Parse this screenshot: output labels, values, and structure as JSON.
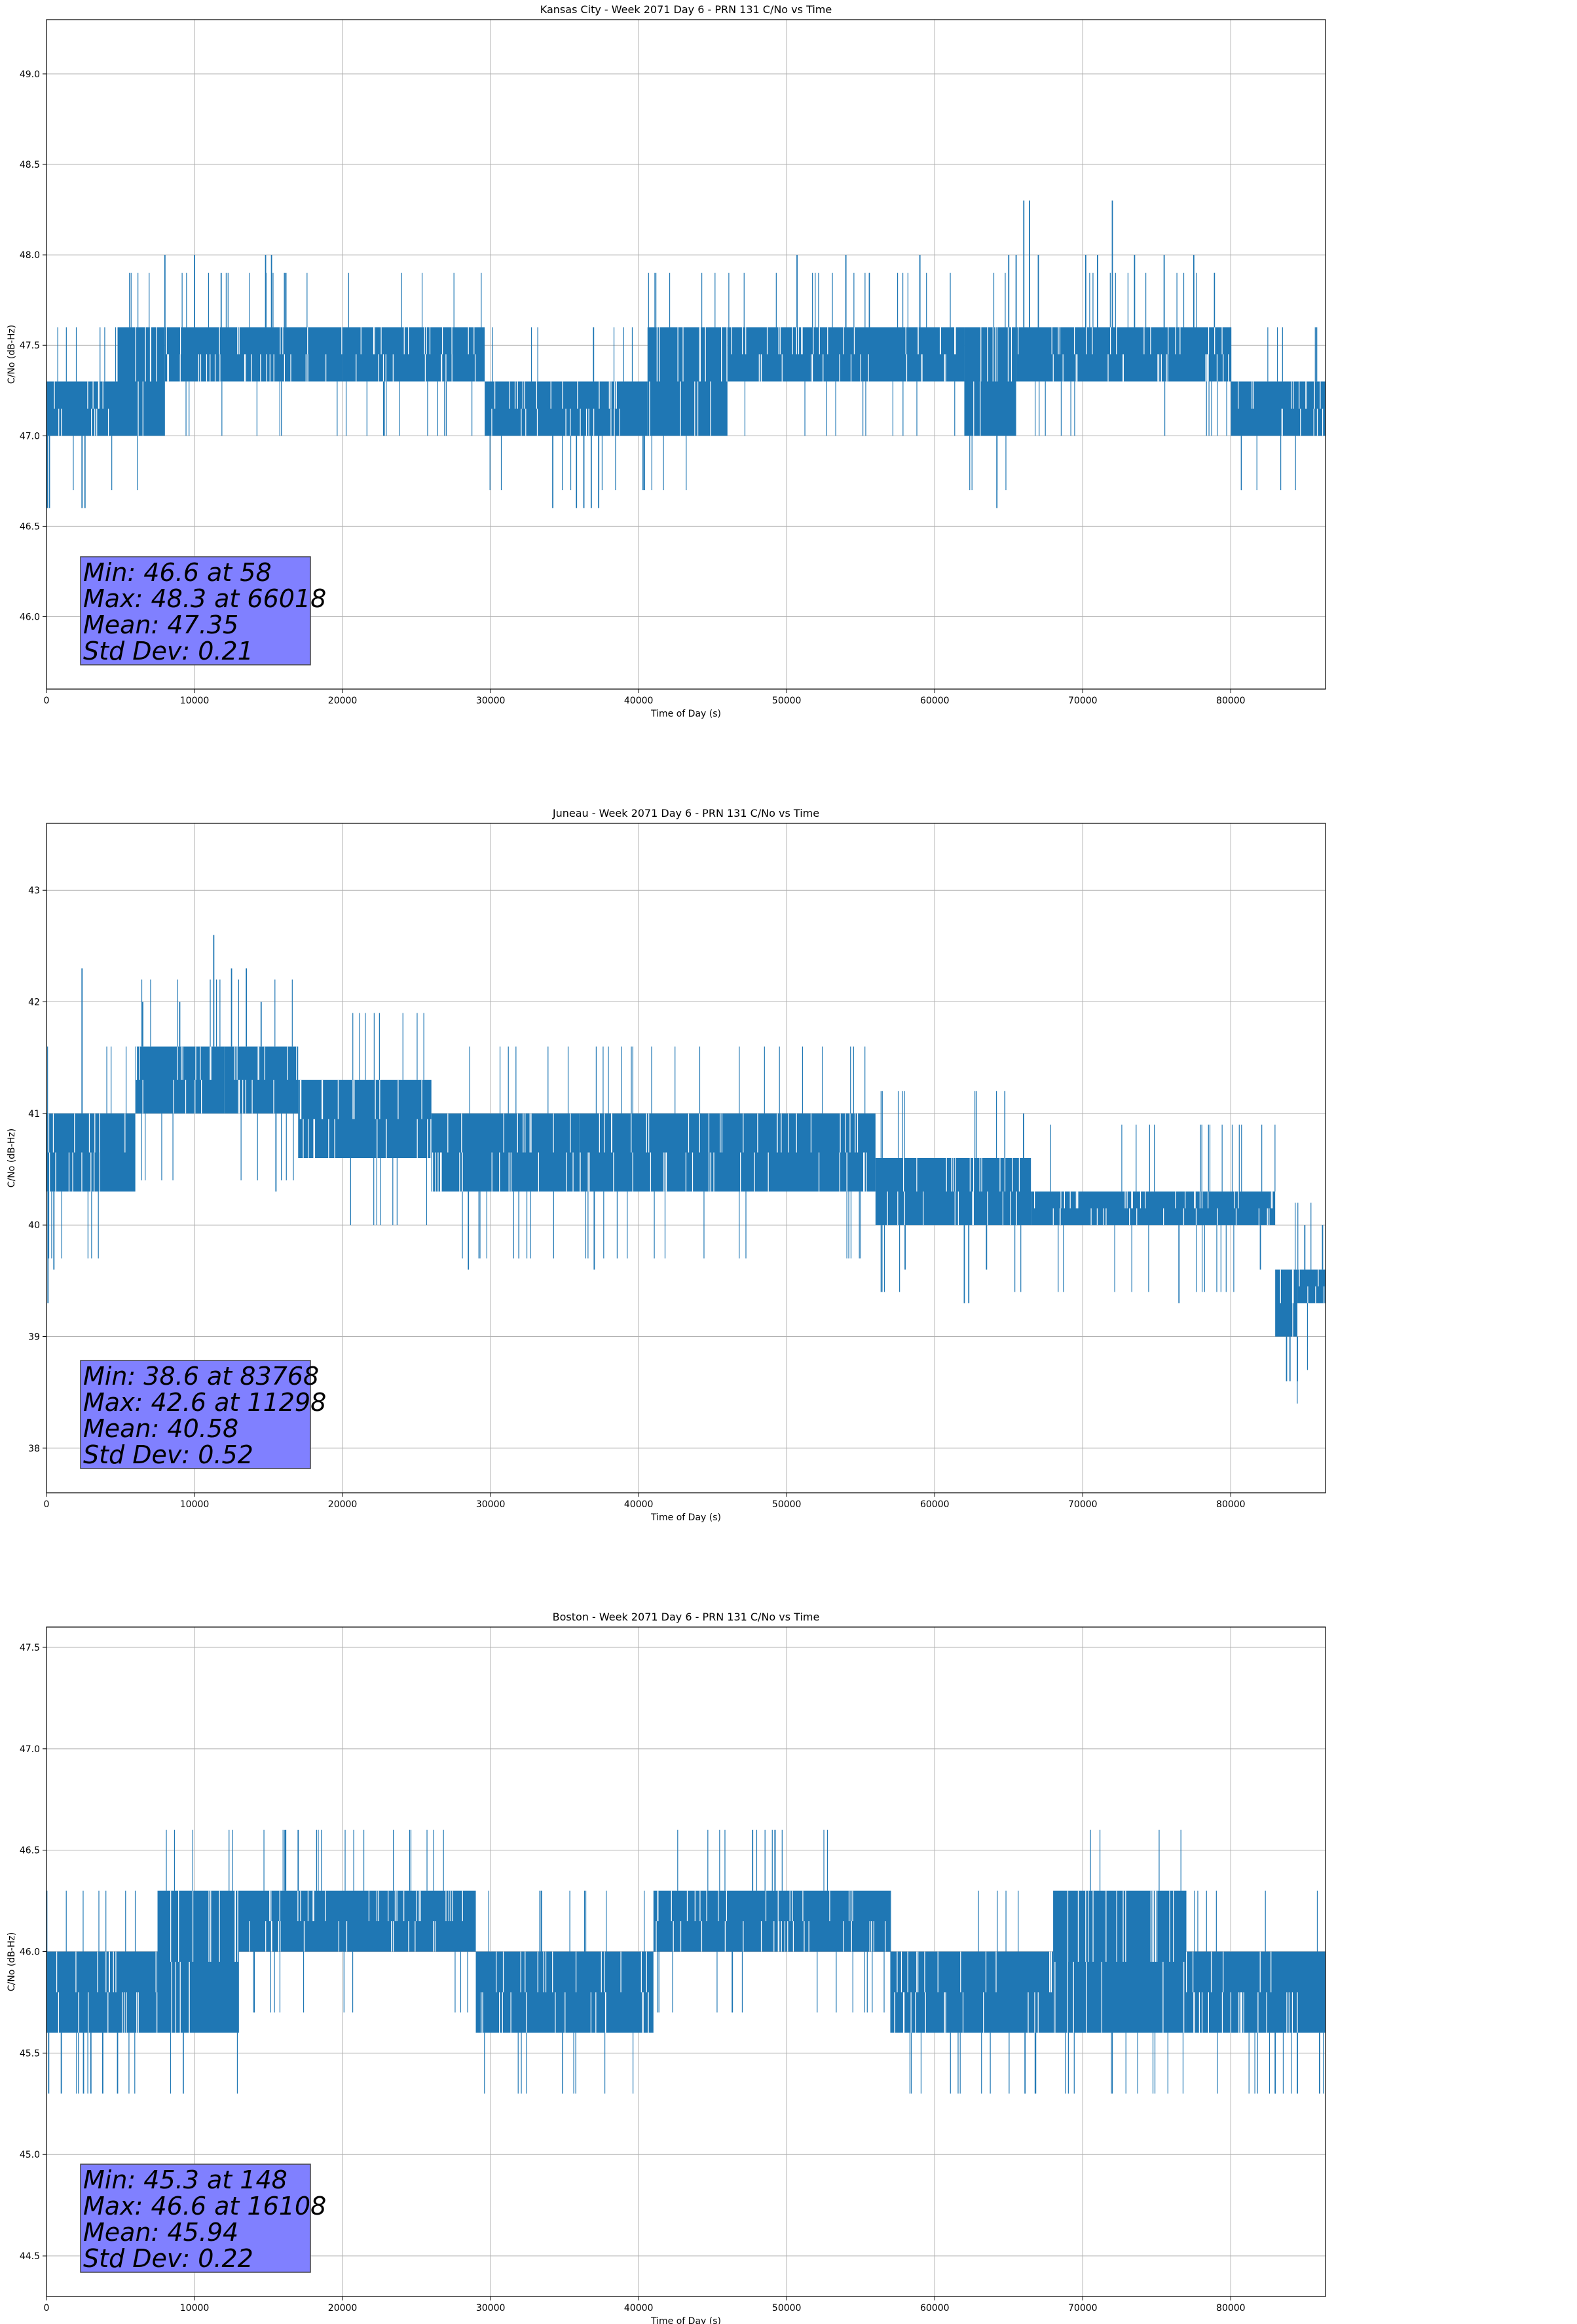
{
  "chart_data": [
    {
      "type": "line",
      "title": "Kansas City - Week 2071 Day 6 - PRN 131 C/No vs Time",
      "xlabel": "Time of Day (s)",
      "ylabel": "C/No (dB-Hz)",
      "xlim": [
        0,
        86400
      ],
      "ylim": [
        45.6,
        49.3
      ],
      "xticks": [
        0,
        10000,
        20000,
        30000,
        40000,
        50000,
        60000,
        70000,
        80000
      ],
      "yticks": [
        46.0,
        46.5,
        47.0,
        47.5,
        48.0,
        48.5,
        49.0
      ],
      "ytick_labels": [
        "46.0",
        "46.5",
        "47.0",
        "47.5",
        "48.0",
        "48.5",
        "49.0"
      ],
      "grid": true,
      "line_color": "#1f77b4",
      "segments": [
        {
          "x": [
            0,
            4800
          ],
          "low": 47.0,
          "high": 47.3
        },
        {
          "x": [
            4800,
            8000
          ],
          "low": 47.0,
          "high": 47.6
        },
        {
          "x": [
            8000,
            20000
          ],
          "low": 47.3,
          "high": 47.6
        },
        {
          "x": [
            20000,
            29600
          ],
          "low": 47.3,
          "high": 47.6
        },
        {
          "x": [
            29600,
            40600
          ],
          "low": 47.0,
          "high": 47.3
        },
        {
          "x": [
            40600,
            46000
          ],
          "low": 47.0,
          "high": 47.6
        },
        {
          "x": [
            46000,
            62000
          ],
          "low": 47.3,
          "high": 47.6
        },
        {
          "x": [
            62000,
            65500
          ],
          "low": 47.0,
          "high": 47.6
        },
        {
          "x": [
            65500,
            80000
          ],
          "low": 47.3,
          "high": 47.6
        },
        {
          "x": [
            80000,
            86400
          ],
          "low": 47.0,
          "high": 47.3
        }
      ],
      "spikes": [
        {
          "x": 58,
          "y": 46.6
        },
        {
          "x": 200,
          "y": 46.6
        },
        {
          "x": 2400,
          "y": 46.6
        },
        {
          "x": 2600,
          "y": 46.6
        },
        {
          "x": 8000,
          "y": 48.0
        },
        {
          "x": 10000,
          "y": 48.0
        },
        {
          "x": 11800,
          "y": 47.9
        },
        {
          "x": 14800,
          "y": 48.0
        },
        {
          "x": 15200,
          "y": 48.0
        },
        {
          "x": 34200,
          "y": 46.6
        },
        {
          "x": 35800,
          "y": 46.6
        },
        {
          "x": 36300,
          "y": 46.6
        },
        {
          "x": 36800,
          "y": 46.6
        },
        {
          "x": 37300,
          "y": 46.6
        },
        {
          "x": 50700,
          "y": 48.0
        },
        {
          "x": 54000,
          "y": 48.0
        },
        {
          "x": 59000,
          "y": 48.0
        },
        {
          "x": 64200,
          "y": 46.6
        },
        {
          "x": 65000,
          "y": 48.0
        },
        {
          "x": 65500,
          "y": 48.0
        },
        {
          "x": 66018,
          "y": 48.3
        },
        {
          "x": 66400,
          "y": 48.3
        },
        {
          "x": 67000,
          "y": 48.0
        },
        {
          "x": 70200,
          "y": 48.0
        },
        {
          "x": 71000,
          "y": 48.0
        },
        {
          "x": 72000,
          "y": 48.3
        },
        {
          "x": 73500,
          "y": 48.0
        },
        {
          "x": 75500,
          "y": 48.0
        },
        {
          "x": 77500,
          "y": 48.0
        },
        {
          "x": 85800,
          "y": 47.6
        }
      ],
      "stats": {
        "min_text": "Min: 46.6 at 58",
        "max_text": "Max: 48.3 at 66018",
        "mean_text": "Mean: 47.35",
        "std_text": "Std Dev: 0.21"
      }
    },
    {
      "type": "line",
      "title": "Juneau - Week 2071 Day 6 - PRN 131 C/No vs Time",
      "xlabel": "Time of Day (s)",
      "ylabel": "C/No (dB-Hz)",
      "xlim": [
        0,
        86400
      ],
      "ylim": [
        37.6,
        43.6
      ],
      "xticks": [
        0,
        10000,
        20000,
        30000,
        40000,
        50000,
        60000,
        70000,
        80000
      ],
      "yticks": [
        38,
        39,
        40,
        41,
        42,
        43
      ],
      "ytick_labels": [
        "38",
        "39",
        "40",
        "41",
        "42",
        "43"
      ],
      "grid": true,
      "line_color": "#1f77b4",
      "segments": [
        {
          "x": [
            0,
            6000
          ],
          "low": 40.3,
          "high": 41.0
        },
        {
          "x": [
            6000,
            12000
          ],
          "low": 41.0,
          "high": 41.6
        },
        {
          "x": [
            12000,
            17000
          ],
          "low": 41.0,
          "high": 41.6
        },
        {
          "x": [
            17000,
            26000
          ],
          "low": 40.6,
          "high": 41.3
        },
        {
          "x": [
            26000,
            36000
          ],
          "low": 40.3,
          "high": 41.0
        },
        {
          "x": [
            36000,
            56000
          ],
          "low": 40.3,
          "high": 41.0
        },
        {
          "x": [
            56000,
            66500
          ],
          "low": 40.0,
          "high": 40.6
        },
        {
          "x": [
            66500,
            83000
          ],
          "low": 40.0,
          "high": 40.3
        },
        {
          "x": [
            83000,
            84500
          ],
          "low": 39.0,
          "high": 39.6
        },
        {
          "x": [
            84500,
            86400
          ],
          "low": 39.3,
          "high": 39.6
        }
      ],
      "spikes": [
        {
          "x": 100,
          "y": 39.3
        },
        {
          "x": 500,
          "y": 39.6
        },
        {
          "x": 2400,
          "y": 42.3
        },
        {
          "x": 6500,
          "y": 42.0
        },
        {
          "x": 9000,
          "y": 42.0
        },
        {
          "x": 11298,
          "y": 42.6
        },
        {
          "x": 12500,
          "y": 42.3
        },
        {
          "x": 13500,
          "y": 42.3
        },
        {
          "x": 14500,
          "y": 42.0
        },
        {
          "x": 15500,
          "y": 40.3
        },
        {
          "x": 28500,
          "y": 39.6
        },
        {
          "x": 37000,
          "y": 39.6
        },
        {
          "x": 58000,
          "y": 39.6
        },
        {
          "x": 62000,
          "y": 39.3
        },
        {
          "x": 62300,
          "y": 39.3
        },
        {
          "x": 63500,
          "y": 39.6
        },
        {
          "x": 66000,
          "y": 41.0
        },
        {
          "x": 76500,
          "y": 39.3
        },
        {
          "x": 82000,
          "y": 39.6
        },
        {
          "x": 83768,
          "y": 38.6
        },
        {
          "x": 84000,
          "y": 38.6
        },
        {
          "x": 84500,
          "y": 38.6
        },
        {
          "x": 85000,
          "y": 40.0
        },
        {
          "x": 86200,
          "y": 40.0
        }
      ],
      "stats": {
        "min_text": "Min: 38.6 at 83768",
        "max_text": "Max: 42.6 at 11298",
        "mean_text": "Mean: 40.58",
        "std_text": "Std Dev: 0.52"
      }
    },
    {
      "type": "line",
      "title": "Boston - Week 2071 Day 6 - PRN 131 C/No vs Time",
      "xlabel": "Time of Day (s)",
      "ylabel": "C/No (dB-Hz)",
      "xlim": [
        0,
        86400
      ],
      "ylim": [
        44.3,
        47.6
      ],
      "xticks": [
        0,
        10000,
        20000,
        30000,
        40000,
        50000,
        60000,
        70000,
        80000
      ],
      "yticks": [
        44.5,
        45.0,
        45.5,
        46.0,
        46.5,
        47.0,
        47.5
      ],
      "ytick_labels": [
        "44.5",
        "45.0",
        "45.5",
        "46.0",
        "46.5",
        "47.0",
        "47.5"
      ],
      "grid": true,
      "line_color": "#1f77b4",
      "segments": [
        {
          "x": [
            0,
            7500
          ],
          "low": 45.6,
          "high": 46.0
        },
        {
          "x": [
            7500,
            13000
          ],
          "low": 45.6,
          "high": 46.3
        },
        {
          "x": [
            13000,
            29000
          ],
          "low": 46.0,
          "high": 46.3
        },
        {
          "x": [
            29000,
            41000
          ],
          "low": 45.6,
          "high": 46.0
        },
        {
          "x": [
            41000,
            57000
          ],
          "low": 46.0,
          "high": 46.3
        },
        {
          "x": [
            57000,
            68000
          ],
          "low": 45.6,
          "high": 46.0
        },
        {
          "x": [
            68000,
            77000
          ],
          "low": 45.6,
          "high": 46.3
        },
        {
          "x": [
            77000,
            86400
          ],
          "low": 45.6,
          "high": 46.0
        }
      ],
      "spikes": [
        {
          "x": 148,
          "y": 45.3
        },
        {
          "x": 1000,
          "y": 45.3
        },
        {
          "x": 2500,
          "y": 45.3
        },
        {
          "x": 3000,
          "y": 45.3
        },
        {
          "x": 3800,
          "y": 45.3
        },
        {
          "x": 4800,
          "y": 45.3
        },
        {
          "x": 16108,
          "y": 46.6
        },
        {
          "x": 17000,
          "y": 46.6
        },
        {
          "x": 47700,
          "y": 46.6
        },
        {
          "x": 83000,
          "y": 45.3
        },
        {
          "x": 84500,
          "y": 45.3
        },
        {
          "x": 86000,
          "y": 45.3
        }
      ],
      "stats": {
        "min_text": "Min: 45.3 at 148",
        "max_text": "Max: 46.6 at 16108",
        "mean_text": "Mean: 45.94",
        "std_text": "Std Dev: 0.22"
      }
    }
  ]
}
